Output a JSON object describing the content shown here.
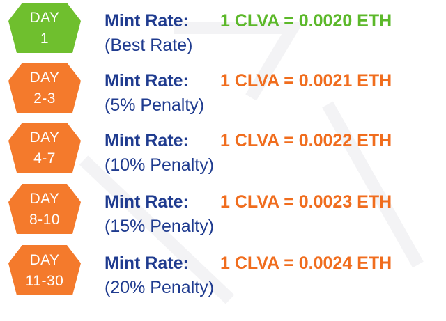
{
  "colors": {
    "green_badge": "#6fbf2e",
    "orange_badge": "#f47a2c",
    "green_text": "#5cb82a",
    "orange_text": "#f06d1e",
    "label_text": "#1f3b8f"
  },
  "tiers": [
    {
      "day_label": "DAY",
      "day_range": "1",
      "mint_label": "Mint Rate:",
      "rate": "1 CLVA = 0.0020 ETH",
      "note": "(Best Rate)",
      "color": "#6fbf2e",
      "text_color": "#5cb82a"
    },
    {
      "day_label": "DAY",
      "day_range": "2-3",
      "mint_label": "Mint Rate:",
      "rate": "1 CLVA = 0.0021 ETH",
      "note": "(5% Penalty)",
      "color": "#f47a2c",
      "text_color": "#f06d1e"
    },
    {
      "day_label": "DAY",
      "day_range": "4-7",
      "mint_label": "Mint Rate:",
      "rate": "1 CLVA = 0.0022 ETH",
      "note": "(10% Penalty)",
      "color": "#f47a2c",
      "text_color": "#f06d1e"
    },
    {
      "day_label": "DAY",
      "day_range": "8-10",
      "mint_label": "Mint Rate:",
      "rate": "1 CLVA = 0.0023 ETH",
      "note": "(15% Penalty)",
      "color": "#f47a2c",
      "text_color": "#f06d1e"
    },
    {
      "day_label": "DAY",
      "day_range": "11-30",
      "mint_label": "Mint Rate:",
      "rate": "1 CLVA = 0.0024 ETH",
      "note": "(20% Penalty)",
      "color": "#f47a2c",
      "text_color": "#f06d1e"
    }
  ]
}
